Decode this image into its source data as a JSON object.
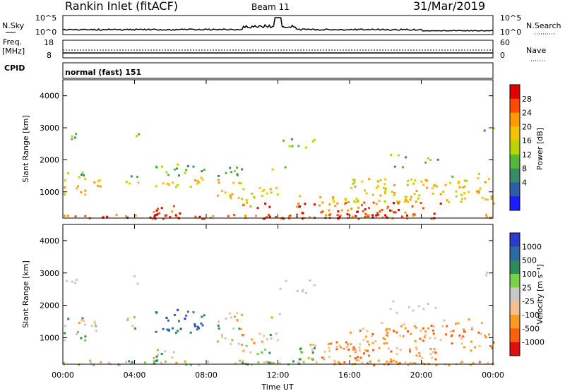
{
  "header": {
    "title": "Rankin Inlet (fitACF)",
    "beam": "Beam 11",
    "date": "31/Mar/2019"
  },
  "noise_panel": {
    "left_label": "N.Sky",
    "right_label": "N.Search",
    "ticks": [
      "10^5",
      "10^0"
    ]
  },
  "freq_panel": {
    "left_label_line1": "Freq.",
    "left_label_line2": "[MHz]",
    "left_ticks": [
      "18",
      "8"
    ],
    "right_label": "Nave",
    "right_ticks": [
      "60",
      "0"
    ]
  },
  "cpid_panel": {
    "label": "CPID",
    "text": "normal (fast) 151"
  },
  "chart_data": [
    {
      "type": "heatmap",
      "name": "power",
      "ylabel": "Slant Range [km]",
      "y_ticks": [
        "1000",
        "2000",
        "3000",
        "4000"
      ],
      "ylim": [
        180,
        4500
      ],
      "x_ticks": [
        "00:00",
        "04:00",
        "08:00",
        "12:00",
        "16:00",
        "20:00",
        "00:00"
      ],
      "colorbar": {
        "label": "Power [dB]",
        "ticks": [
          "28",
          "24",
          "20",
          "16",
          "12",
          "8",
          "4"
        ],
        "colors": [
          "#e00000",
          "#ff4a00",
          "#ff9a00",
          "#f5c400",
          "#b9d400",
          "#54b83a",
          "#3a8a68",
          "#2c5ea8",
          "#1c1cff"
        ]
      }
    },
    {
      "type": "heatmap",
      "name": "velocity",
      "ylabel": "Slant Range [km]",
      "y_ticks": [
        "1000",
        "2000",
        "3000",
        "4000"
      ],
      "ylim": [
        180,
        4500
      ],
      "x_ticks": [
        "00:00",
        "04:00",
        "08:00",
        "12:00",
        "16:00",
        "20:00",
        "00:00"
      ],
      "xlabel": "Time UT",
      "colorbar": {
        "label": "Velocity [m s⁻¹]",
        "ticks": [
          "1000",
          "500",
          "100",
          "25",
          "-25",
          "-100",
          "-500",
          "-1000"
        ],
        "colors": [
          "#2a3cc8",
          "#2b6aa3",
          "#2e8a5c",
          "#7bd04a",
          "#c8c8c8",
          "#f5c090",
          "#ff9a22",
          "#ff6010",
          "#e01010"
        ]
      }
    }
  ]
}
